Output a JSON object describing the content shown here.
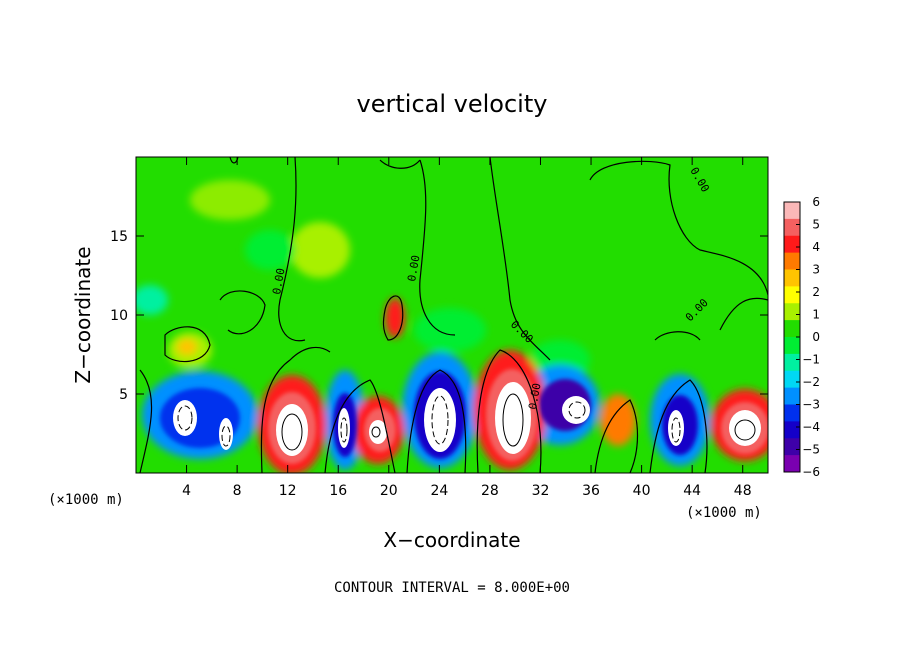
{
  "chart_data": {
    "type": "heatmap",
    "title": "vertical velocity",
    "xlabel": "X−coordinate",
    "ylabel": "Z−coordinate",
    "x_unit_label": "(×1000 m)",
    "y_unit_label": "(×1000 m)",
    "xlim": [
      0,
      50
    ],
    "ylim": [
      0,
      20
    ],
    "x_ticks": [
      4,
      8,
      12,
      16,
      20,
      24,
      28,
      32,
      36,
      40,
      44,
      48
    ],
    "y_ticks": [
      5,
      10,
      15
    ],
    "colorbar": {
      "ticks": [
        "6",
        "5",
        "4",
        "3",
        "2",
        "1",
        "0",
        "−1",
        "−2",
        "−3",
        "−4",
        "−5",
        "−6"
      ],
      "colors": [
        "#fbb8b8",
        "#f46060",
        "#ff1a1a",
        "#ff7a00",
        "#ffc400",
        "#ffff00",
        "#a8f000",
        "#22dd00",
        "#00ee33",
        "#00f0a0",
        "#00d8f4",
        "#0090ff",
        "#0030ee",
        "#1400c8",
        "#3e00a8",
        "#7a00b0"
      ]
    },
    "contour_labels": [
      "0.00",
      "0.00",
      "0.00",
      "0.00",
      "0.00",
      "0.00"
    ],
    "annotation": "CONTOUR INTERVAL = 8.000E+00"
  }
}
